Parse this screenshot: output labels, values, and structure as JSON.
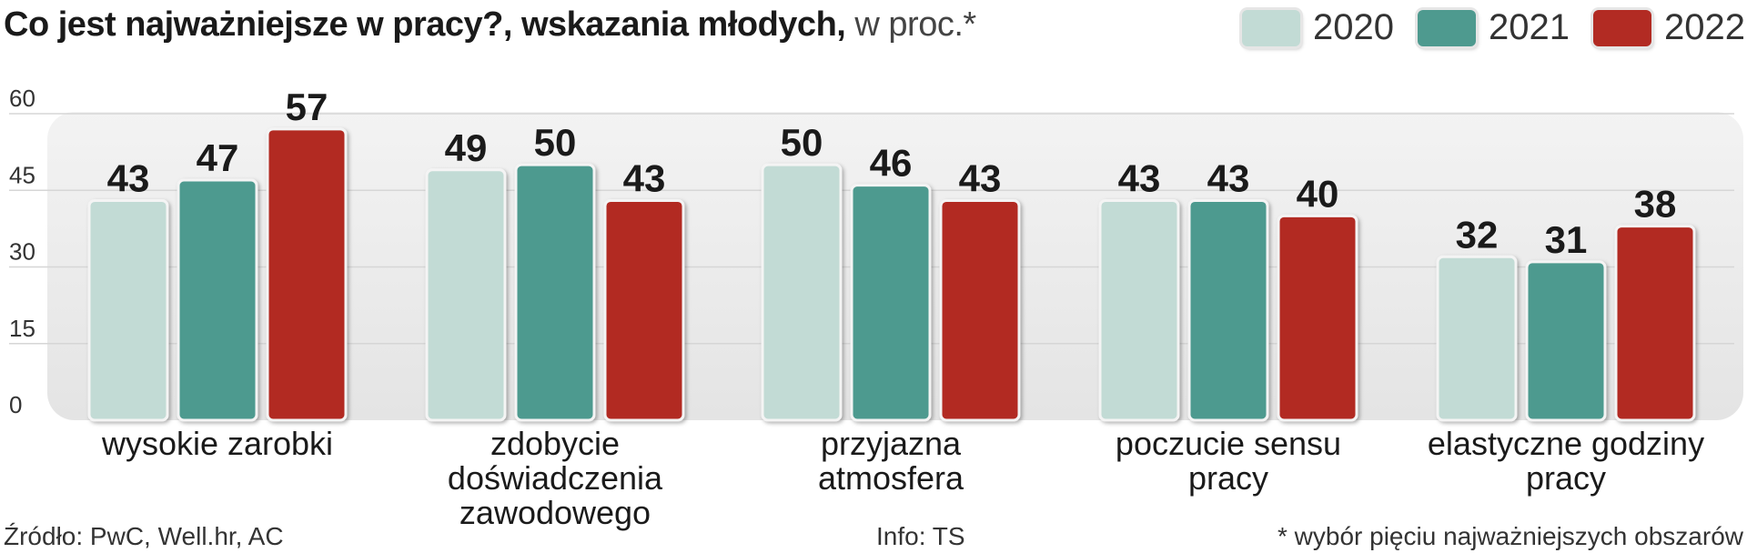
{
  "title": {
    "main": "Co jest najważniejsze w pracy?, wskazania młodych,",
    "suffix": "w proc.*"
  },
  "colors": {
    "2020": "#c2dbd5",
    "2021": "#4e9a8f",
    "2022": "#b22b23",
    "panel": "#ececec"
  },
  "chart_data": {
    "type": "bar",
    "title": "Co jest najważniejsze w pracy?, wskazania młodych, w proc.*",
    "categories": [
      [
        "wysokie zarobki"
      ],
      [
        "zdobycie",
        "doświadczenia",
        "zawodowego"
      ],
      [
        "przyjazna",
        "atmosfera"
      ],
      [
        "poczucie sensu",
        "pracy"
      ],
      [
        "elastyczne godziny",
        "pracy"
      ]
    ],
    "series": [
      {
        "name": "2020",
        "values": [
          43,
          49,
          50,
          43,
          32
        ]
      },
      {
        "name": "2021",
        "values": [
          47,
          50,
          46,
          43,
          31
        ]
      },
      {
        "name": "2022",
        "values": [
          57,
          43,
          43,
          40,
          38
        ]
      }
    ],
    "yticks": [
      0,
      15,
      30,
      45,
      60
    ],
    "ylim": [
      0,
      60
    ],
    "grid": true,
    "legend": "top-right",
    "xlabel": "",
    "ylabel": ""
  },
  "footer": {
    "source": "Źródło: PwC, Well.hr, AC",
    "info": "Info: TS",
    "footnote": "* wybór pięciu najważniejszych obszarów"
  }
}
